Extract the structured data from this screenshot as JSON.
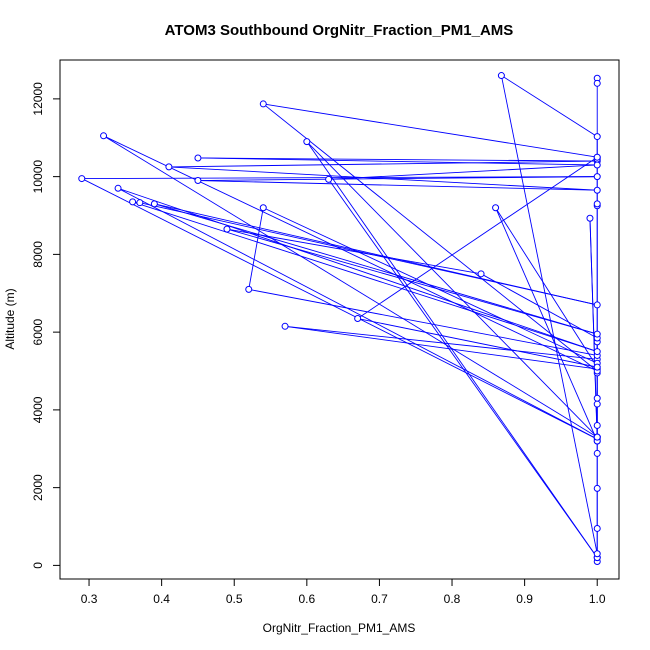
{
  "chart_data": {
    "type": "scatter",
    "title": "ATOM3 Southbound OrgNitr_Fraction_PM1_AMS",
    "xlabel": "OrgNitr_Fraction_PM1_AMS",
    "ylabel": "Altitude (m)",
    "xlim": [
      0.26,
      1.03
    ],
    "ylim": [
      -350,
      13000
    ],
    "x_ticks": [
      0.3,
      0.4,
      0.5,
      0.6,
      0.7,
      0.8,
      0.9,
      1.0
    ],
    "x_tick_labels": [
      "0.3",
      "0.4",
      "0.5",
      "0.6",
      "0.7",
      "0.8",
      "0.9",
      "1.0"
    ],
    "y_ticks": [
      0,
      2000,
      4000,
      6000,
      8000,
      10000,
      12000
    ],
    "y_tick_labels": [
      "0",
      "2000",
      "4000",
      "6000",
      "8000",
      "10000",
      "12000"
    ],
    "grid": false,
    "legend": "none",
    "color": "#0000ff",
    "series": [
      {
        "marker": "open-circle",
        "connected": true,
        "points": [
          [
            1.0,
            100
          ],
          [
            1.0,
            200
          ],
          [
            1.0,
            950
          ],
          [
            1.0,
            1980
          ],
          [
            1.0,
            2880
          ],
          [
            1.0,
            3200
          ],
          [
            1.0,
            3300
          ],
          [
            1.0,
            3600
          ],
          [
            1.0,
            4150
          ],
          [
            1.0,
            4300
          ],
          [
            1.0,
            4950
          ],
          [
            1.0,
            5050
          ],
          [
            0.57,
            6150
          ],
          [
            1.0,
            5300
          ],
          [
            1.0,
            5400
          ],
          [
            0.52,
            7100
          ],
          [
            0.54,
            9200
          ],
          [
            1.0,
            5200
          ],
          [
            1.0,
            5750
          ],
          [
            1.0,
            5850
          ],
          [
            0.84,
            7500
          ],
          [
            0.49,
            8650
          ],
          [
            1.0,
            5950
          ],
          [
            0.39,
            9300
          ],
          [
            1.0,
            6700
          ],
          [
            0.37,
            9330
          ],
          [
            0.36,
            9350
          ],
          [
            1.0,
            5500
          ],
          [
            0.34,
            9700
          ],
          [
            1.0,
            3250
          ],
          [
            0.29,
            9950
          ],
          [
            1.0,
            10000
          ],
          [
            0.45,
            9900
          ],
          [
            1.0,
            9650
          ],
          [
            0.41,
            10250
          ],
          [
            1.0,
            10400
          ],
          [
            0.45,
            10480
          ],
          [
            1.0,
            10300
          ],
          [
            0.63,
            9930
          ],
          [
            1.0,
            200
          ],
          [
            0.6,
            10900
          ],
          [
            1.0,
            3300
          ],
          [
            0.32,
            11050
          ],
          [
            1.0,
            5000
          ],
          [
            0.54,
            11870
          ],
          [
            1.0,
            10500
          ],
          [
            0.67,
            6350
          ],
          [
            1.0,
            5100
          ],
          [
            0.86,
            9200
          ],
          [
            1.0,
            3200
          ],
          [
            0.99,
            8930
          ],
          [
            1.0,
            3300
          ],
          [
            1.0,
            9250
          ],
          [
            1.0,
            9300
          ],
          [
            1.0,
            10450
          ],
          [
            1.0,
            10500
          ],
          [
            1.0,
            11030
          ],
          [
            0.868,
            12600
          ],
          [
            1.0,
            300
          ],
          [
            1.0,
            12530
          ],
          [
            1.0,
            12400
          ]
        ]
      }
    ]
  }
}
